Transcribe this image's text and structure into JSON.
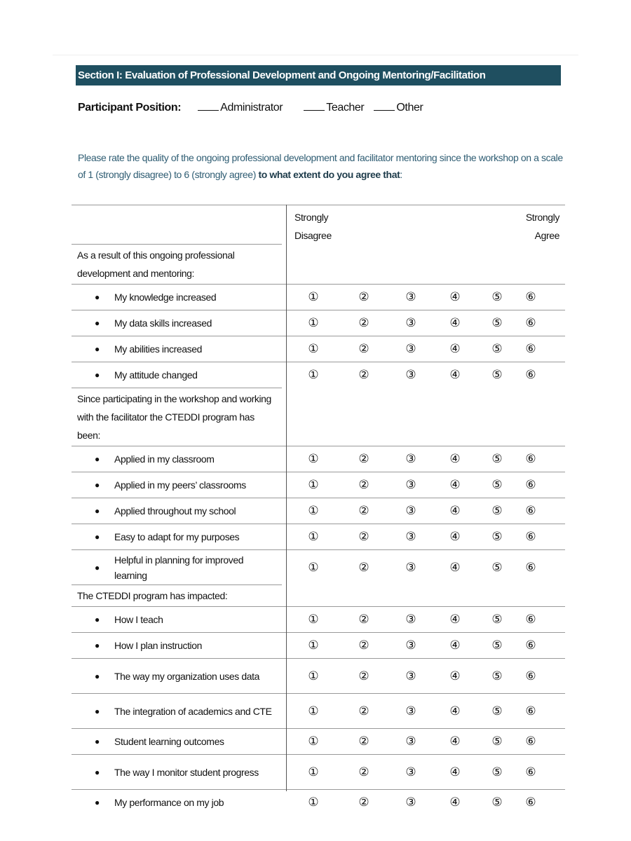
{
  "section_title": "Section I:  Evaluation of Professional Development and Ongoing Mentoring/Facilitation",
  "participant": {
    "label": "Participant Position:",
    "options": [
      "Administrator",
      "Teacher",
      "Other"
    ]
  },
  "instructions": {
    "text": "Please rate the quality of the ongoing professional development and facilitator mentoring since the workshop on a scale of 1 (strongly disagree) to 6 (strongly agree) ",
    "bold": "to what extent do you agree that",
    "end": ":"
  },
  "scale": {
    "low_1": "Strongly",
    "low_2": "Disagree",
    "high_1": "Strongly",
    "high_2": "Agree",
    "marks": [
      "①",
      "②",
      "③",
      "④",
      "⑤",
      "⑥"
    ]
  },
  "colors": {
    "section_bar": "#1f4f60",
    "instruction_text": "#2f5d73"
  },
  "groups": [
    {
      "heading": "As a result of this ongoing professional development and mentoring:",
      "items": [
        "My knowledge increased",
        "My data skills increased",
        "My abilities increased",
        "My attitude changed"
      ]
    },
    {
      "heading": "Since participating in the workshop and working with the facilitator the CTEDDI program has been:",
      "items": [
        "Applied in my classroom",
        "Applied in my peers’ classrooms",
        "Applied throughout my school",
        "Easy to adapt for my purposes",
        "Helpful in planning for improved learning"
      ]
    },
    {
      "heading": "The CTEDDI program has impacted:",
      "items": [
        "How I teach",
        "How I plan instruction",
        "The way my organization uses data",
        "The integration of academics and CTE",
        "Student learning outcomes",
        "The way I monitor student progress",
        "My performance on my job"
      ]
    }
  ]
}
